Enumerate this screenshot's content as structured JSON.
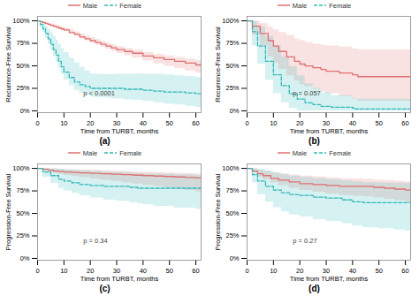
{
  "chart_data": [
    {
      "type": "step",
      "title": "(a)",
      "annotations": [
        "p < 0.0001"
      ],
      "xlabel": "Time from TURBT, months",
      "ylabel": "Recurrence-Free Survival",
      "xlim": [
        0,
        62
      ],
      "ylim": [
        -0.02,
        1.05
      ],
      "xticks": [
        0,
        10,
        20,
        30,
        40,
        50,
        60
      ],
      "yticks": [
        {
          "value": 0,
          "label": "0%"
        },
        {
          "value": 0.25,
          "label": "25%"
        },
        {
          "value": 0.5,
          "label": "50%"
        },
        {
          "value": 0.75,
          "label": "75%"
        },
        {
          "value": 1.0,
          "label": "100%"
        }
      ],
      "legend": "top",
      "grid": false,
      "series": [
        {
          "name": "Male",
          "color": "#E07070",
          "line_style": "solid",
          "x": [
            0,
            1,
            2,
            3,
            4,
            5,
            6,
            7,
            8,
            9,
            10,
            12,
            14,
            16,
            18,
            20,
            22,
            24,
            26,
            28,
            30,
            33,
            36,
            40,
            44,
            48,
            52,
            56,
            60,
            62
          ],
          "values": [
            1.0,
            0.99,
            0.98,
            0.97,
            0.96,
            0.95,
            0.94,
            0.93,
            0.92,
            0.91,
            0.9,
            0.87,
            0.85,
            0.82,
            0.8,
            0.78,
            0.76,
            0.74,
            0.72,
            0.7,
            0.68,
            0.66,
            0.64,
            0.61,
            0.59,
            0.57,
            0.55,
            0.53,
            0.51,
            0.5
          ],
          "lo": [
            1.0,
            0.985,
            0.972,
            0.96,
            0.948,
            0.937,
            0.926,
            0.915,
            0.904,
            0.893,
            0.882,
            0.855,
            0.829,
            0.802,
            0.778,
            0.753,
            0.73,
            0.706,
            0.684,
            0.661,
            0.638,
            0.612,
            0.586,
            0.554,
            0.522,
            0.496,
            0.47,
            0.445,
            0.42,
            0.405
          ],
          "hi": [
            1.0,
            0.998,
            0.993,
            0.985,
            0.977,
            0.968,
            0.959,
            0.95,
            0.941,
            0.932,
            0.923,
            0.9,
            0.879,
            0.856,
            0.835,
            0.814,
            0.793,
            0.773,
            0.753,
            0.733,
            0.713,
            0.693,
            0.674,
            0.651,
            0.629,
            0.611,
            0.593,
            0.576,
            0.558,
            0.555
          ]
        },
        {
          "name": "Female",
          "color": "#30B8B8",
          "line_style": "dashed",
          "x": [
            0,
            1,
            2,
            3,
            4,
            5,
            6,
            7,
            8,
            9,
            10,
            12,
            14,
            16,
            18,
            20,
            22,
            24,
            26,
            28,
            30,
            33,
            36,
            40,
            44,
            48,
            52,
            56,
            60,
            62
          ],
          "values": [
            1.0,
            0.96,
            0.91,
            0.86,
            0.8,
            0.74,
            0.68,
            0.62,
            0.55,
            0.49,
            0.43,
            0.37,
            0.32,
            0.29,
            0.27,
            0.25,
            0.25,
            0.25,
            0.25,
            0.25,
            0.25,
            0.24,
            0.24,
            0.23,
            0.22,
            0.21,
            0.21,
            0.2,
            0.19,
            0.18
          ],
          "lo": [
            1.0,
            0.93,
            0.87,
            0.805,
            0.74,
            0.672,
            0.604,
            0.538,
            0.47,
            0.406,
            0.344,
            0.28,
            0.225,
            0.195,
            0.174,
            0.152,
            0.148,
            0.145,
            0.14,
            0.135,
            0.132,
            0.122,
            0.117,
            0.105,
            0.09,
            0.075,
            0.065,
            0.052,
            0.04,
            0.03
          ],
          "hi": [
            1.0,
            0.992,
            0.97,
            0.94,
            0.905,
            0.868,
            0.828,
            0.786,
            0.742,
            0.695,
            0.647,
            0.587,
            0.531,
            0.482,
            0.444,
            0.41,
            0.406,
            0.404,
            0.404,
            0.404,
            0.41,
            0.407,
            0.41,
            0.408,
            0.406,
            0.4,
            0.39,
            0.38,
            0.37,
            0.37
          ]
        }
      ]
    },
    {
      "type": "step",
      "title": "(b)",
      "annotations": [
        "p = 0.057"
      ],
      "xlabel": "Time from TURBT, months",
      "ylabel": "Recurrence-Free Survival",
      "xlim": [
        0,
        62
      ],
      "ylim": [
        -0.02,
        1.05
      ],
      "xticks": [
        0,
        10,
        20,
        30,
        40,
        50,
        60
      ],
      "yticks": [
        {
          "value": 0,
          "label": "0%"
        },
        {
          "value": 0.25,
          "label": "25%"
        },
        {
          "value": 0.5,
          "label": "50%"
        },
        {
          "value": 0.75,
          "label": "75%"
        },
        {
          "value": 1.0,
          "label": "100%"
        }
      ],
      "legend": "top",
      "grid": false,
      "series": [
        {
          "name": "Male",
          "color": "#E07070",
          "line_style": "solid",
          "x": [
            0,
            2,
            5,
            8,
            10,
            12,
            15,
            18,
            20,
            22,
            25,
            28,
            30,
            35,
            40,
            42,
            62
          ],
          "values": [
            1.0,
            0.94,
            0.86,
            0.78,
            0.72,
            0.66,
            0.6,
            0.55,
            0.52,
            0.5,
            0.48,
            0.46,
            0.44,
            0.42,
            0.4,
            0.38,
            0.38
          ],
          "lo": [
            1.0,
            0.84,
            0.72,
            0.6,
            0.53,
            0.46,
            0.39,
            0.33,
            0.29,
            0.27,
            0.24,
            0.21,
            0.19,
            0.16,
            0.13,
            0.11,
            0.1
          ],
          "hi": [
            1.0,
            0.999,
            0.97,
            0.93,
            0.9,
            0.87,
            0.84,
            0.8,
            0.78,
            0.76,
            0.74,
            0.73,
            0.72,
            0.71,
            0.69,
            0.68,
            0.68
          ]
        },
        {
          "name": "Female",
          "color": "#30B8B8",
          "line_style": "dashed",
          "x": [
            0,
            2,
            4,
            7,
            10,
            13,
            16,
            19,
            22,
            25,
            28,
            32,
            40,
            41,
            62
          ],
          "values": [
            1.0,
            0.88,
            0.72,
            0.55,
            0.4,
            0.28,
            0.19,
            0.13,
            0.09,
            0.07,
            0.05,
            0.04,
            0.03,
            0.02,
            0.02
          ],
          "lo": [
            1.0,
            0.72,
            0.52,
            0.34,
            0.19,
            0.09,
            0.03,
            0.0,
            0.0,
            0.0,
            0.0,
            0.0,
            0.0,
            0.0,
            0.0
          ],
          "hi": [
            1.0,
            0.99,
            0.93,
            0.83,
            0.72,
            0.6,
            0.49,
            0.39,
            0.3,
            0.25,
            0.2,
            0.17,
            0.14,
            0.13,
            0.13
          ]
        }
      ]
    },
    {
      "type": "step",
      "title": "(c)",
      "annotations": [
        "p = 0.34"
      ],
      "xlabel": "Time from TURBT, months",
      "ylabel": "Progression-Free Survival",
      "xlim": [
        0,
        62
      ],
      "ylim": [
        -0.02,
        1.05
      ],
      "xticks": [
        0,
        10,
        20,
        30,
        40,
        50,
        60
      ],
      "yticks": [
        {
          "value": 0,
          "label": "0%"
        },
        {
          "value": 0.25,
          "label": "25%"
        },
        {
          "value": 0.5,
          "label": "50%"
        },
        {
          "value": 0.75,
          "label": "75%"
        },
        {
          "value": 1.0,
          "label": "100%"
        }
      ],
      "legend": "top",
      "grid": false,
      "series": [
        {
          "name": "Male",
          "color": "#E07070",
          "line_style": "solid",
          "x": [
            0,
            2,
            4,
            6,
            8,
            10,
            13,
            16,
            20,
            24,
            28,
            32,
            36,
            40,
            44,
            48,
            52,
            56,
            60,
            62
          ],
          "values": [
            1.0,
            0.99,
            0.98,
            0.97,
            0.965,
            0.96,
            0.955,
            0.95,
            0.945,
            0.94,
            0.935,
            0.93,
            0.925,
            0.92,
            0.915,
            0.91,
            0.905,
            0.9,
            0.895,
            0.89
          ],
          "lo": [
            1.0,
            0.978,
            0.962,
            0.946,
            0.934,
            0.922,
            0.91,
            0.897,
            0.883,
            0.869,
            0.855,
            0.841,
            0.827,
            0.813,
            0.799,
            0.784,
            0.77,
            0.755,
            0.74,
            0.73
          ],
          "hi": [
            1.0,
            0.999,
            0.997,
            0.993,
            0.99,
            0.987,
            0.984,
            0.981,
            0.978,
            0.974,
            0.97,
            0.966,
            0.962,
            0.958,
            0.954,
            0.95,
            0.946,
            0.942,
            0.938,
            0.936
          ]
        },
        {
          "name": "Female",
          "color": "#30B8B8",
          "line_style": "dashed",
          "x": [
            0,
            2,
            5,
            8,
            10,
            13,
            16,
            20,
            25,
            30,
            35,
            38,
            40,
            44,
            52,
            60,
            62
          ],
          "values": [
            1.0,
            0.96,
            0.92,
            0.88,
            0.86,
            0.84,
            0.82,
            0.81,
            0.8,
            0.8,
            0.79,
            0.78,
            0.78,
            0.78,
            0.78,
            0.78,
            0.78
          ],
          "lo": [
            1.0,
            0.9,
            0.833,
            0.778,
            0.751,
            0.723,
            0.697,
            0.671,
            0.647,
            0.635,
            0.619,
            0.605,
            0.595,
            0.58,
            0.56,
            0.545,
            0.54
          ],
          "hi": [
            1.0,
            0.999,
            0.995,
            0.99,
            0.985,
            0.98,
            0.974,
            0.968,
            0.96,
            0.955,
            0.948,
            0.942,
            0.94,
            0.936,
            0.928,
            0.92,
            0.918
          ]
        }
      ]
    },
    {
      "type": "step",
      "title": "(d)",
      "annotations": [
        "p = 0.27"
      ],
      "xlabel": "Time from TURBT, months",
      "ylabel": "Progression-Free Survival",
      "xlim": [
        0,
        62
      ],
      "ylim": [
        -0.02,
        1.05
      ],
      "xticks": [
        0,
        10,
        20,
        30,
        40,
        50,
        60
      ],
      "yticks": [
        {
          "value": 0,
          "label": "0%"
        },
        {
          "value": 0.25,
          "label": "25%"
        },
        {
          "value": 0.5,
          "label": "50%"
        },
        {
          "value": 0.75,
          "label": "75%"
        },
        {
          "value": 1.0,
          "label": "100%"
        }
      ],
      "legend": "top",
      "grid": false,
      "series": [
        {
          "name": "Male",
          "color": "#E07070",
          "line_style": "solid",
          "x": [
            0,
            2,
            4,
            6,
            9,
            12,
            16,
            20,
            25,
            30,
            35,
            40,
            44,
            48,
            52,
            56,
            60,
            62
          ],
          "values": [
            1.0,
            0.97,
            0.94,
            0.92,
            0.89,
            0.87,
            0.85,
            0.83,
            0.82,
            0.81,
            0.8,
            0.8,
            0.8,
            0.79,
            0.78,
            0.77,
            0.76,
            0.76
          ],
          "lo": [
            1.0,
            0.95,
            0.905,
            0.875,
            0.84,
            0.81,
            0.78,
            0.755,
            0.735,
            0.715,
            0.698,
            0.692,
            0.685,
            0.672,
            0.658,
            0.643,
            0.628,
            0.622
          ],
          "hi": [
            1.0,
            0.994,
            0.982,
            0.97,
            0.955,
            0.94,
            0.927,
            0.914,
            0.904,
            0.895,
            0.886,
            0.882,
            0.879,
            0.872,
            0.865,
            0.858,
            0.851,
            0.848
          ]
        },
        {
          "name": "Female",
          "color": "#30B8B8",
          "line_style": "dashed",
          "x": [
            0,
            2,
            4,
            7,
            10,
            13,
            16,
            20,
            25,
            30,
            36,
            40,
            44,
            50,
            56,
            60,
            62
          ],
          "values": [
            1.0,
            0.93,
            0.86,
            0.8,
            0.76,
            0.73,
            0.71,
            0.7,
            0.68,
            0.67,
            0.65,
            0.63,
            0.62,
            0.62,
            0.62,
            0.62,
            0.62
          ],
          "lo": [
            1.0,
            0.84,
            0.71,
            0.625,
            0.565,
            0.518,
            0.483,
            0.46,
            0.432,
            0.41,
            0.385,
            0.36,
            0.34,
            0.33,
            0.316,
            0.305,
            0.3
          ],
          "hi": [
            1.0,
            0.999,
            0.99,
            0.97,
            0.95,
            0.93,
            0.915,
            0.9,
            0.888,
            0.876,
            0.862,
            0.85,
            0.842,
            0.84,
            0.836,
            0.834,
            0.833
          ]
        }
      ]
    }
  ]
}
